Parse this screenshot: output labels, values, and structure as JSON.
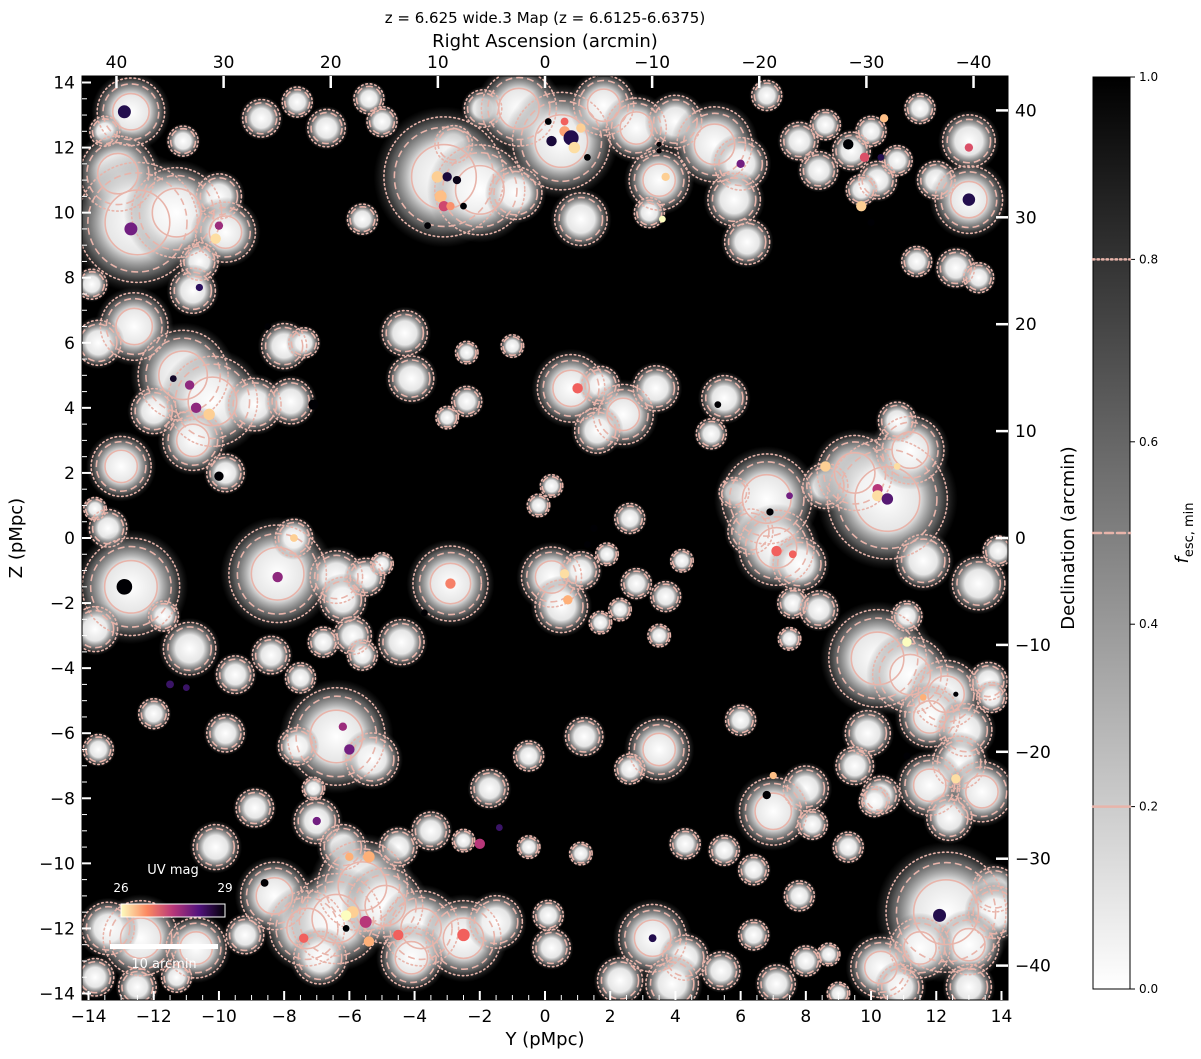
{
  "chart_data": {
    "type": "heatmap",
    "title": "z = 6.625 wide.3 Map (z = 6.6125-6.6375)",
    "xlabel": "Y (pMpc)",
    "ylabel": "Z (pMpc)",
    "top_xlabel": "Right Ascension (arcmin)",
    "right_ylabel": "Declination (arcmin)",
    "xlim": [
      -14.2,
      14.2
    ],
    "ylim": [
      -14.2,
      14.2
    ],
    "x_ticks": [
      "−14",
      "−12",
      "−10",
      "−8",
      "−6",
      "−4",
      "−2",
      "0",
      "2",
      "4",
      "6",
      "8",
      "10",
      "12",
      "14"
    ],
    "y_ticks": [
      "−14",
      "−12",
      "−10",
      "−8",
      "−6",
      "−4",
      "−2",
      "0",
      "2",
      "4",
      "6",
      "8",
      "10",
      "12",
      "14"
    ],
    "top_ticks": [
      "40",
      "30",
      "20",
      "10",
      "0",
      "−10",
      "−20",
      "−30",
      "−40"
    ],
    "right_ticks": [
      "40",
      "30",
      "20",
      "10",
      "0",
      "−10",
      "−20",
      "−30",
      "−40"
    ],
    "colorbar": {
      "label": "f",
      "label_sub": "esc, min",
      "range": [
        0.0,
        1.0
      ],
      "ticks": [
        "0.0",
        "0.2",
        "0.4",
        "0.6",
        "0.8",
        "1.0"
      ],
      "contour_levels": [
        0.2,
        0.5,
        0.8
      ],
      "contour_color": "#e8b4aa"
    },
    "uv_legend": {
      "title": "UV mag",
      "min_label": "26",
      "max_label": "29",
      "range": [
        26,
        29
      ]
    },
    "scale_bar": {
      "label": "10 arcmin",
      "length_arcmin": 10
    },
    "ionized_regions": [
      [
        -12.7,
        13.1,
        0.9
      ],
      [
        -13.5,
        12.5,
        0.4
      ],
      [
        -11.1,
        12.2,
        0.4
      ],
      [
        -13.1,
        11.2,
        1.0
      ],
      [
        -12.5,
        9.7,
        1.6
      ],
      [
        -11.3,
        10.0,
        1.2
      ],
      [
        -10.0,
        10.5,
        0.6
      ],
      [
        -9.8,
        9.4,
        0.8
      ],
      [
        -10.6,
        8.5,
        0.5
      ],
      [
        -10.8,
        7.6,
        0.6
      ],
      [
        -13.9,
        7.8,
        0.4
      ],
      [
        -12.6,
        6.5,
        0.9
      ],
      [
        -13.7,
        6.0,
        0.6
      ],
      [
        -11.1,
        5.0,
        1.2
      ],
      [
        -10.2,
        4.2,
        1.2
      ],
      [
        -12.0,
        3.9,
        0.6
      ],
      [
        -10.8,
        3.0,
        0.8
      ],
      [
        -13.0,
        2.2,
        0.8
      ],
      [
        -9.8,
        2.0,
        0.5
      ],
      [
        -13.4,
        0.3,
        0.5
      ],
      [
        -12.7,
        -1.5,
        1.3
      ],
      [
        -11.7,
        -2.4,
        0.4
      ],
      [
        -13.8,
        -2.8,
        0.6
      ],
      [
        -10.9,
        -3.4,
        0.7
      ],
      [
        -9.5,
        -4.2,
        0.5
      ],
      [
        -8.4,
        -3.6,
        0.5
      ],
      [
        -7.5,
        -4.3,
        0.4
      ],
      [
        -8.9,
        4.1,
        0.7
      ],
      [
        -7.8,
        4.2,
        0.6
      ],
      [
        -8.0,
        5.9,
        0.6
      ],
      [
        -7.4,
        6.0,
        0.4
      ],
      [
        -8.2,
        -1.1,
        1.3
      ],
      [
        -7.7,
        0.0,
        0.5
      ],
      [
        -6.4,
        -1.2,
        0.7
      ],
      [
        -5.5,
        -1.2,
        0.5
      ],
      [
        -6.2,
        -1.9,
        0.6
      ],
      [
        -5.0,
        -0.8,
        0.3
      ],
      [
        -4.4,
        -3.2,
        0.6
      ],
      [
        -5.9,
        -3.0,
        0.5
      ],
      [
        -5.6,
        -3.6,
        0.4
      ],
      [
        -6.8,
        -3.2,
        0.4
      ],
      [
        -2.9,
        -1.4,
        1.0
      ],
      [
        -6.4,
        -6.1,
        1.3
      ],
      [
        -5.3,
        -6.8,
        0.7
      ],
      [
        -7.6,
        -6.4,
        0.5
      ],
      [
        -7.0,
        -8.7,
        0.6
      ],
      [
        -6.2,
        -9.5,
        0.6
      ],
      [
        -4.5,
        -9.5,
        0.5
      ],
      [
        -3.5,
        -9.0,
        0.5
      ],
      [
        -1.7,
        -7.7,
        0.5
      ],
      [
        -5.6,
        -10.7,
        1.2
      ],
      [
        -8.3,
        -11.0,
        0.9
      ],
      [
        -7.3,
        -12.0,
        1.0
      ],
      [
        -6.4,
        -11.7,
        1.2
      ],
      [
        -4.9,
        -11.3,
        1.0
      ],
      [
        -3.8,
        -12.0,
        1.0
      ],
      [
        -2.5,
        -12.3,
        1.0
      ],
      [
        -1.5,
        -11.8,
        0.7
      ],
      [
        -4.1,
        -12.9,
        0.8
      ],
      [
        -6.9,
        -12.9,
        0.7
      ],
      [
        -12.4,
        -12.3,
        1.0
      ],
      [
        -13.4,
        -12.0,
        0.7
      ],
      [
        -10.7,
        -12.6,
        0.8
      ],
      [
        -9.2,
        -12.2,
        0.5
      ],
      [
        -10.1,
        -9.5,
        0.6
      ],
      [
        -13.7,
        -6.5,
        0.4
      ],
      [
        -12.0,
        -5.4,
        0.4
      ],
      [
        -9.8,
        -6.0,
        0.5
      ],
      [
        -8.9,
        -8.3,
        0.5
      ],
      [
        -8.7,
        12.9,
        0.5
      ],
      [
        -7.6,
        13.4,
        0.4
      ],
      [
        -6.7,
        12.6,
        0.5
      ],
      [
        -5.4,
        13.5,
        0.4
      ],
      [
        -5.0,
        12.8,
        0.4
      ],
      [
        -2.8,
        12.1,
        0.5
      ],
      [
        -1.9,
        13.2,
        0.5
      ],
      [
        -5.6,
        9.8,
        0.4
      ],
      [
        -3.1,
        11.1,
        1.6
      ],
      [
        -2.0,
        10.7,
        1.2
      ],
      [
        -0.8,
        13.2,
        1.0
      ],
      [
        0.5,
        12.2,
        1.3
      ],
      [
        1.8,
        13.3,
        0.8
      ],
      [
        2.8,
        12.6,
        0.8
      ],
      [
        4.0,
        12.8,
        0.7
      ],
      [
        5.2,
        12.1,
        1.0
      ],
      [
        3.5,
        11.0,
        0.8
      ],
      [
        -0.9,
        10.6,
        0.7
      ],
      [
        1.1,
        9.8,
        0.7
      ],
      [
        3.2,
        10.0,
        0.4
      ],
      [
        6.0,
        11.5,
        0.7
      ],
      [
        6.8,
        13.6,
        0.4
      ],
      [
        5.8,
        10.4,
        0.7
      ],
      [
        6.2,
        9.1,
        0.6
      ],
      [
        8.4,
        11.3,
        0.5
      ],
      [
        7.8,
        12.2,
        0.5
      ],
      [
        8.6,
        12.7,
        0.4
      ],
      [
        9.4,
        11.9,
        0.5
      ],
      [
        10.0,
        12.5,
        0.4
      ],
      [
        10.2,
        11.0,
        0.5
      ],
      [
        9.7,
        10.7,
        0.4
      ],
      [
        10.8,
        11.6,
        0.4
      ],
      [
        12.0,
        11.0,
        0.5
      ],
      [
        13.0,
        12.2,
        0.7
      ],
      [
        11.5,
        13.2,
        0.4
      ],
      [
        13.0,
        10.4,
        0.9
      ],
      [
        12.6,
        8.3,
        0.5
      ],
      [
        13.3,
        8.0,
        0.4
      ],
      [
        11.4,
        8.5,
        0.4
      ],
      [
        -4.3,
        6.3,
        0.6
      ],
      [
        -4.1,
        4.9,
        0.6
      ],
      [
        -2.4,
        5.7,
        0.3
      ],
      [
        -2.4,
        4.2,
        0.4
      ],
      [
        -1.0,
        5.9,
        0.3
      ],
      [
        -3.0,
        3.7,
        0.3
      ],
      [
        0.8,
        4.6,
        0.9
      ],
      [
        1.7,
        4.7,
        0.5
      ],
      [
        2.4,
        3.8,
        0.8
      ],
      [
        3.4,
        4.6,
        0.6
      ],
      [
        1.6,
        3.3,
        0.6
      ],
      [
        5.5,
        4.3,
        0.6
      ],
      [
        5.1,
        3.2,
        0.4
      ],
      [
        5.8,
        1.4,
        0.4
      ],
      [
        6.3,
        0.2,
        0.6
      ],
      [
        6.8,
        1.2,
        1.2
      ],
      [
        7.1,
        -0.3,
        1.0
      ],
      [
        7.8,
        -0.8,
        0.7
      ],
      [
        8.6,
        1.6,
        0.6
      ],
      [
        9.5,
        2.0,
        1.0
      ],
      [
        10.5,
        1.2,
        1.6
      ],
      [
        11.2,
        2.7,
        0.9
      ],
      [
        11.6,
        -0.7,
        0.7
      ],
      [
        10.8,
        3.6,
        0.5
      ],
      [
        0.2,
        -1.2,
        0.8
      ],
      [
        0.5,
        -2.1,
        0.7
      ],
      [
        1.1,
        -1.0,
        0.5
      ],
      [
        2.6,
        0.6,
        0.4
      ],
      [
        2.8,
        -1.4,
        0.4
      ],
      [
        3.7,
        -1.8,
        0.4
      ],
      [
        2.3,
        -2.2,
        0.3
      ],
      [
        3.5,
        -3.0,
        0.3
      ],
      [
        6.0,
        -5.6,
        0.4
      ],
      [
        7.6,
        -2.0,
        0.4
      ],
      [
        8.4,
        -2.2,
        0.5
      ],
      [
        7.5,
        -3.1,
        0.3
      ],
      [
        -0.2,
        1.0,
        0.3
      ],
      [
        0.2,
        1.6,
        0.3
      ],
      [
        1.9,
        -0.5,
        0.3
      ],
      [
        4.2,
        -0.7,
        0.3
      ],
      [
        1.7,
        -2.6,
        0.3
      ],
      [
        10.2,
        -3.7,
        1.3
      ],
      [
        11.2,
        -4.2,
        1.0
      ],
      [
        12.3,
        -4.8,
        0.9
      ],
      [
        11.8,
        -5.5,
        0.8
      ],
      [
        12.9,
        -5.9,
        0.7
      ],
      [
        13.6,
        -4.4,
        0.5
      ],
      [
        13.3,
        -1.4,
        0.7
      ],
      [
        13.9,
        -0.4,
        0.4
      ],
      [
        12.7,
        -6.9,
        0.7
      ],
      [
        11.8,
        -7.6,
        0.8
      ],
      [
        13.4,
        -7.8,
        0.8
      ],
      [
        12.4,
        -8.6,
        0.6
      ],
      [
        13.7,
        -4.9,
        0.4
      ],
      [
        11.1,
        -2.4,
        0.4
      ],
      [
        9.9,
        -6.0,
        0.6
      ],
      [
        9.5,
        -7.0,
        0.5
      ],
      [
        10.3,
        -7.9,
        0.5
      ],
      [
        8.0,
        -7.7,
        0.6
      ],
      [
        7.0,
        -8.4,
        0.9
      ],
      [
        8.2,
        -8.8,
        0.4
      ],
      [
        9.3,
        -9.5,
        0.4
      ],
      [
        10.1,
        -8.1,
        0.4
      ],
      [
        13.8,
        -10.8,
        0.6
      ],
      [
        12.3,
        -11.5,
        1.6
      ],
      [
        13.8,
        -11.5,
        0.7
      ],
      [
        13.0,
        -12.5,
        0.8
      ],
      [
        11.5,
        -12.6,
        0.8
      ],
      [
        10.3,
        -13.2,
        0.8
      ],
      [
        10.9,
        -13.8,
        0.6
      ],
      [
        13.0,
        -13.8,
        0.6
      ],
      [
        3.5,
        -6.5,
        0.8
      ],
      [
        1.2,
        -6.1,
        0.5
      ],
      [
        -0.5,
        -6.7,
        0.4
      ],
      [
        2.6,
        -7.1,
        0.4
      ],
      [
        1.1,
        -9.7,
        0.3
      ],
      [
        4.3,
        -9.4,
        0.4
      ],
      [
        5.5,
        -9.6,
        0.4
      ],
      [
        6.4,
        -10.2,
        0.4
      ],
      [
        7.8,
        -11.0,
        0.4
      ],
      [
        3.3,
        -12.3,
        0.9
      ],
      [
        4.3,
        -12.9,
        0.6
      ],
      [
        3.9,
        -13.7,
        0.7
      ],
      [
        2.3,
        -13.6,
        0.6
      ],
      [
        0.1,
        -11.6,
        0.4
      ],
      [
        0.2,
        -12.6,
        0.5
      ],
      [
        5.4,
        -13.3,
        0.5
      ],
      [
        6.4,
        -12.2,
        0.4
      ],
      [
        8.0,
        -13.0,
        0.4
      ],
      [
        7.1,
        -13.7,
        0.5
      ],
      [
        8.7,
        -12.8,
        0.3
      ],
      [
        9.0,
        -14.0,
        0.3
      ],
      [
        -0.5,
        -9.5,
        0.3
      ],
      [
        -2.5,
        -9.3,
        0.3
      ],
      [
        -13.8,
        -13.5,
        0.5
      ],
      [
        -12.5,
        -13.8,
        0.5
      ],
      [
        -11.3,
        -13.5,
        0.4
      ],
      [
        -13.8,
        0.9,
        0.3
      ],
      [
        -7.1,
        -7.7,
        0.3
      ]
    ],
    "galaxies": [
      [
        -12.9,
        13.1,
        28.6,
        2.5
      ],
      [
        -12.7,
        9.5,
        28.0,
        2.5
      ],
      [
        -10.0,
        9.6,
        27.7,
        1.6
      ],
      [
        -10.1,
        9.2,
        26.2,
        2.0
      ],
      [
        -10.6,
        7.7,
        28.5,
        1.4
      ],
      [
        -11.4,
        4.9,
        28.8,
        1.3
      ],
      [
        -10.9,
        4.7,
        27.8,
        1.8
      ],
      [
        -10.7,
        4.0,
        27.8,
        2.0
      ],
      [
        -10.3,
        3.8,
        26.3,
        2.2
      ],
      [
        -10.0,
        1.9,
        29.0,
        1.8
      ],
      [
        -12.9,
        -1.5,
        29.0,
        3.0
      ],
      [
        -11.5,
        -4.5,
        28.4,
        1.5
      ],
      [
        -11.0,
        -4.6,
        28.4,
        1.3
      ],
      [
        -8.2,
        -1.2,
        27.8,
        2.0
      ],
      [
        -7.7,
        0.0,
        26.3,
        1.5
      ],
      [
        -7.1,
        4.1,
        30.2,
        2.0
      ],
      [
        -8.5,
        6.5,
        29.2,
        1.3
      ],
      [
        -6.2,
        -5.8,
        27.7,
        1.6
      ],
      [
        -6.0,
        -6.5,
        28.0,
        2.0
      ],
      [
        -7.0,
        -8.7,
        28.0,
        1.6
      ],
      [
        -8.6,
        -10.6,
        30.5,
        1.5
      ],
      [
        -6.0,
        -9.8,
        26.5,
        1.6
      ],
      [
        -5.4,
        -9.8,
        26.5,
        2.2
      ],
      [
        -5.9,
        -11.5,
        26.3,
        2.3
      ],
      [
        -6.1,
        -11.6,
        26.0,
        2.0
      ],
      [
        -5.5,
        -11.8,
        27.5,
        2.3
      ],
      [
        -6.1,
        -12.0,
        29.3,
        1.3
      ],
      [
        -5.4,
        -12.4,
        26.5,
        2.0
      ],
      [
        -7.4,
        -12.3,
        27.0,
        1.8
      ],
      [
        -4.5,
        -12.2,
        27.0,
        2.0
      ],
      [
        -2.5,
        -12.2,
        27.0,
        2.4
      ],
      [
        -2.9,
        -1.4,
        26.8,
        2.0
      ],
      [
        -3.7,
        -2.3,
        29.0,
        1.3
      ],
      [
        -2.0,
        -9.4,
        27.5,
        2.0
      ],
      [
        -1.4,
        -8.9,
        28.4,
        1.3
      ],
      [
        -3.3,
        11.1,
        26.3,
        2.2
      ],
      [
        -3.0,
        11.1,
        28.7,
        1.8
      ],
      [
        -2.7,
        11.0,
        28.9,
        1.6
      ],
      [
        -3.2,
        10.5,
        26.4,
        2.3
      ],
      [
        -3.1,
        10.2,
        27.3,
        2.0
      ],
      [
        -2.9,
        10.2,
        26.7,
        1.6
      ],
      [
        -2.5,
        10.2,
        29.0,
        1.3
      ],
      [
        -3.6,
        9.6,
        29.5,
        1.3
      ],
      [
        0.1,
        12.8,
        29.7,
        1.3
      ],
      [
        0.6,
        12.8,
        27.0,
        1.5
      ],
      [
        0.6,
        12.5,
        26.6,
        2.0
      ],
      [
        0.2,
        12.2,
        28.7,
        2.0
      ],
      [
        0.8,
        12.3,
        28.6,
        2.9
      ],
      [
        1.1,
        12.6,
        26.3,
        1.8
      ],
      [
        0.9,
        12.0,
        26.2,
        2.2
      ],
      [
        1.3,
        11.7,
        29.2,
        1.3
      ],
      [
        3.5,
        11.9,
        29.0,
        1.0
      ],
      [
        3.5,
        12.1,
        29.1,
        1.0
      ],
      [
        3.7,
        11.1,
        26.3,
        1.6
      ],
      [
        6.0,
        11.5,
        28.0,
        1.6
      ],
      [
        9.3,
        12.1,
        30.5,
        2.0
      ],
      [
        9.8,
        11.7,
        27.2,
        1.8
      ],
      [
        10.3,
        11.7,
        28.6,
        1.3
      ],
      [
        10.4,
        12.9,
        26.4,
        1.6
      ],
      [
        9.7,
        10.2,
        26.3,
        2.0
      ],
      [
        10.0,
        9.7,
        29.3,
        1.4
      ],
      [
        13.0,
        12.0,
        27.2,
        1.6
      ],
      [
        13.0,
        10.4,
        28.6,
        2.4
      ],
      [
        3.6,
        9.8,
        26.0,
        1.3
      ],
      [
        1.0,
        4.6,
        27.0,
        2.0
      ],
      [
        5.3,
        4.1,
        29.3,
        1.3
      ],
      [
        6.9,
        0.8,
        29.0,
        1.4
      ],
      [
        7.5,
        1.3,
        28.0,
        1.3
      ],
      [
        7.1,
        -0.4,
        27.0,
        2.0
      ],
      [
        7.6,
        -0.5,
        27.0,
        1.5
      ],
      [
        8.6,
        2.2,
        26.3,
        2.0
      ],
      [
        10.2,
        1.5,
        27.5,
        2.0
      ],
      [
        10.2,
        1.3,
        26.2,
        2.1
      ],
      [
        10.5,
        1.2,
        28.2,
        2.2
      ],
      [
        10.8,
        2.2,
        26.2,
        1.3
      ],
      [
        0.6,
        -1.1,
        26.2,
        1.8
      ],
      [
        0.7,
        -1.9,
        26.5,
        1.8
      ],
      [
        1.5,
        0.3,
        29.0,
        1.4
      ],
      [
        1.3,
        -0.2,
        29.3,
        1.3
      ],
      [
        11.1,
        -3.2,
        26.0,
        1.8
      ],
      [
        11.6,
        -4.9,
        26.5,
        1.3
      ],
      [
        12.6,
        -4.8,
        29.3,
        1.0
      ],
      [
        11.1,
        -6.7,
        29.5,
        1.4
      ],
      [
        12.6,
        -7.4,
        26.2,
        1.8
      ],
      [
        7.0,
        -7.3,
        26.4,
        1.4
      ],
      [
        6.8,
        -7.9,
        30.2,
        1.6
      ],
      [
        12.1,
        -11.6,
        28.6,
        2.5
      ],
      [
        3.3,
        -12.3,
        28.6,
        1.5
      ]
    ]
  }
}
